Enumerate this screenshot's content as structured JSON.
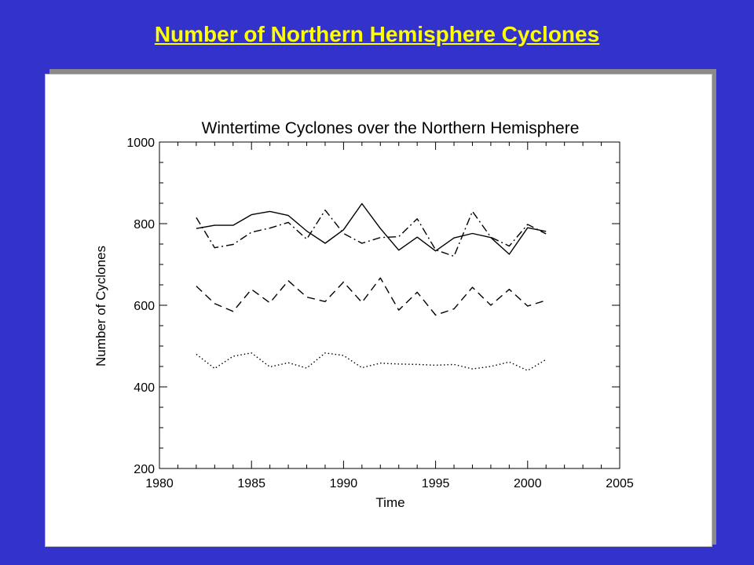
{
  "slide": {
    "title": "Number of Northern Hemisphere Cyclones"
  },
  "colors": {
    "background": "#3333cc",
    "title": "#ffff00",
    "panel": "#ffffff",
    "ink": "#000000"
  },
  "chart_data": {
    "type": "line",
    "title": "Wintertime Cyclones over the Northern Hemisphere",
    "xlabel": "Time",
    "ylabel": "Number of Cyclones",
    "xlim": [
      1980,
      2005
    ],
    "ylim": [
      200,
      1000
    ],
    "xticks": [
      "1980",
      "1985",
      "1990",
      "1995",
      "2000",
      "2005"
    ],
    "yticks": [
      "200",
      "400",
      "600",
      "800",
      "1000"
    ],
    "grid": false,
    "legend": "none",
    "x": [
      1982,
      1983,
      1984,
      1985,
      1986,
      1987,
      1988,
      1989,
      1990,
      1991,
      1992,
      1993,
      1994,
      1995,
      1996,
      1997,
      1998,
      1999,
      2000,
      2001
    ],
    "series": [
      {
        "style": "solid",
        "values": [
          788,
          796,
          796,
          822,
          830,
          820,
          782,
          752,
          785,
          849,
          788,
          735,
          767,
          733,
          765,
          776,
          766,
          725,
          790,
          781
        ]
      },
      {
        "style": "dash-dot",
        "values": [
          815,
          741,
          749,
          779,
          789,
          803,
          762,
          833,
          776,
          752,
          766,
          768,
          812,
          736,
          720,
          830,
          767,
          745,
          798,
          775
        ]
      },
      {
        "style": "dashed",
        "values": [
          647,
          604,
          585,
          639,
          606,
          660,
          620,
          609,
          657,
          607,
          667,
          588,
          632,
          576,
          591,
          644,
          600,
          639,
          598,
          612
        ]
      },
      {
        "style": "dotted",
        "values": [
          480,
          445,
          475,
          483,
          449,
          459,
          446,
          483,
          477,
          447,
          458,
          456,
          455,
          453,
          455,
          444,
          450,
          461,
          440,
          467
        ]
      }
    ]
  }
}
